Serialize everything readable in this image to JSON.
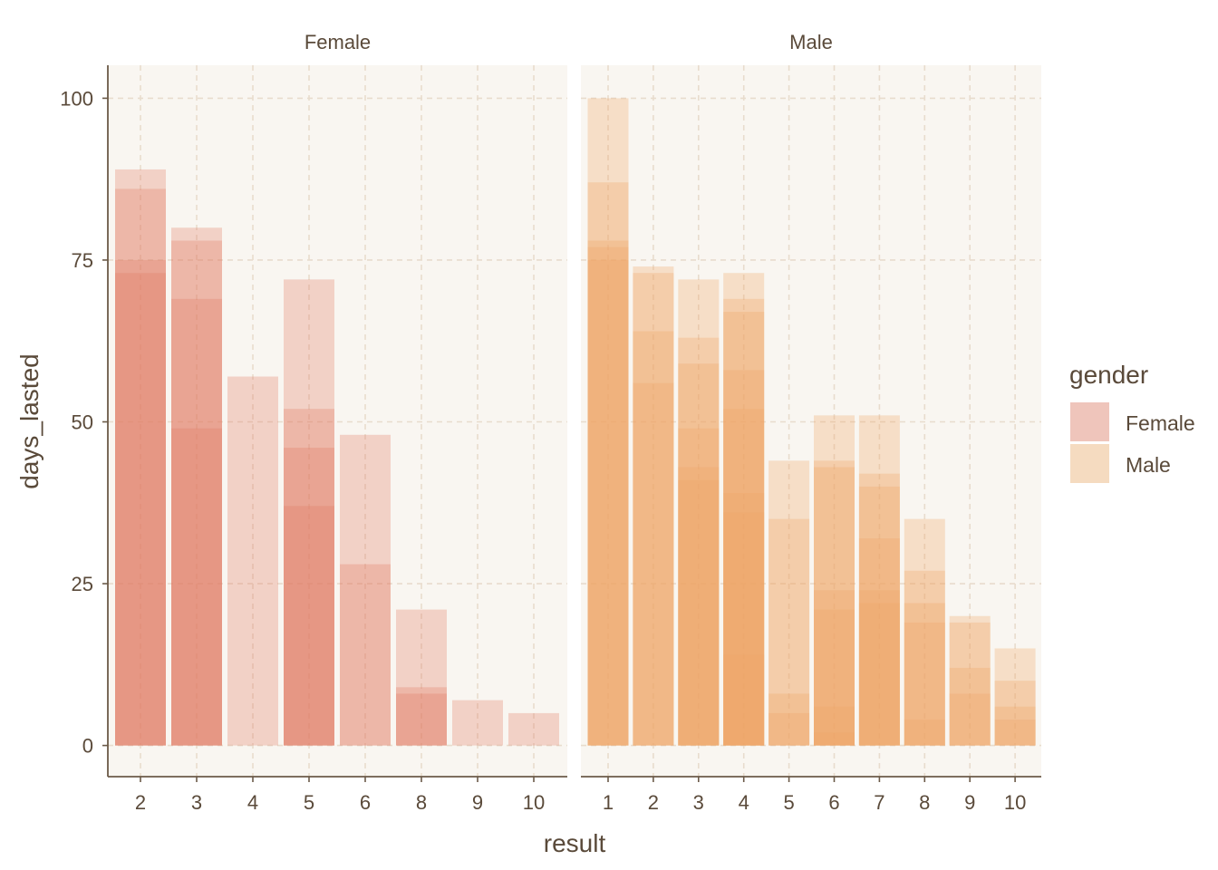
{
  "chart_data": {
    "type": "bar",
    "facet_by": "gender",
    "xlabel": "result",
    "ylabel": "days_lasted",
    "ylim": [
      0,
      100
    ],
    "yticks": [
      0,
      25,
      50,
      75,
      100
    ],
    "grid": true,
    "grid_style": "dashed",
    "bar_style": "overlapping translucent bars, one per contestant",
    "legend": {
      "title": "gender",
      "position": "right",
      "entries": [
        {
          "label": "Female",
          "color": "#efc5bb"
        },
        {
          "label": "Male",
          "color": "#f5dbc0"
        }
      ]
    },
    "colors": {
      "female_fill": "#e07a64",
      "male_fill": "#f0a567",
      "panel_bg": "#f9f6f1",
      "grid": "#e8dccd",
      "axis_line": "#6b5a48",
      "text": "#5a4a3a"
    },
    "panels": [
      {
        "label": "Female",
        "fill": "#e07a64",
        "categories": [
          "2",
          "3",
          "4",
          "5",
          "6",
          "8",
          "9",
          "10"
        ],
        "bars": [
          {
            "x": "2",
            "values": [
              89,
              86,
              75,
              73
            ]
          },
          {
            "x": "3",
            "values": [
              80,
              78,
              69,
              49
            ]
          },
          {
            "x": "4",
            "values": [
              57
            ]
          },
          {
            "x": "5",
            "values": [
              72,
              52,
              46,
              37
            ]
          },
          {
            "x": "6",
            "values": [
              48,
              28
            ]
          },
          {
            "x": "8",
            "values": [
              21,
              9,
              8
            ]
          },
          {
            "x": "9",
            "values": [
              7
            ]
          },
          {
            "x": "10",
            "values": [
              5
            ]
          }
        ]
      },
      {
        "label": "Male",
        "fill": "#f0a567",
        "categories": [
          "1",
          "2",
          "3",
          "4",
          "5",
          "6",
          "7",
          "8",
          "9",
          "10"
        ],
        "bars": [
          {
            "x": "1",
            "values": [
              100,
              87,
              78,
              77,
              75
            ]
          },
          {
            "x": "2",
            "values": [
              74,
              73,
              64,
              56
            ]
          },
          {
            "x": "3",
            "values": [
              72,
              63,
              59,
              49,
              43,
              41
            ]
          },
          {
            "x": "4",
            "values": [
              73,
              69,
              67,
              58,
              52,
              39,
              36,
              14
            ]
          },
          {
            "x": "5",
            "values": [
              44,
              35,
              8,
              5
            ]
          },
          {
            "x": "6",
            "values": [
              51,
              44,
              43,
              24,
              21,
              6,
              2
            ]
          },
          {
            "x": "7",
            "values": [
              51,
              42,
              40,
              32,
              24,
              22
            ]
          },
          {
            "x": "8",
            "values": [
              35,
              27,
              22,
              19,
              4
            ]
          },
          {
            "x": "9",
            "values": [
              20,
              19,
              12,
              8
            ]
          },
          {
            "x": "10",
            "values": [
              15,
              10,
              6,
              4
            ]
          }
        ]
      }
    ]
  }
}
